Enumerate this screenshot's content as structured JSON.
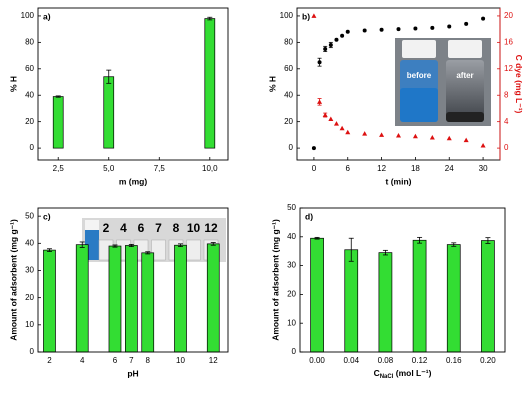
{
  "chart_data": [
    {
      "type": "bar",
      "panel_label": "a)",
      "x_label": "m (mg)",
      "y_label": "% H",
      "x": [
        2.5,
        5,
        10
      ],
      "values": [
        39,
        54,
        98
      ],
      "errors": [
        0.5,
        5,
        1
      ],
      "color": "#33dd33",
      "xlim": [
        1.5,
        10.9
      ],
      "xticks": [
        {
          "value": 2.5,
          "label": "2,5"
        },
        {
          "value": 5,
          "label": "5,0"
        },
        {
          "value": 7.5,
          "label": "7,5"
        },
        {
          "value": 10,
          "label": "10,0"
        }
      ],
      "ylim": [
        -9,
        106
      ],
      "yticks": [
        0,
        20,
        40,
        60,
        80,
        100
      ]
    },
    {
      "type": "scatter",
      "panel_label": "b)",
      "x_label": "t (min)",
      "y_label": "% H",
      "y2_label": "C dye (mg L⁻¹)",
      "x": [
        0,
        1,
        2,
        3,
        4,
        5,
        6,
        9,
        12,
        15,
        18,
        21,
        24,
        27,
        30
      ],
      "series": [
        {
          "color": "#000000",
          "values": [
            0,
            65,
            75,
            78,
            82,
            85,
            88,
            89,
            89.5,
            90,
            90.5,
            91,
            92,
            94,
            98
          ],
          "errors": [
            null,
            3,
            2,
            2,
            null,
            null,
            null,
            null,
            null,
            null,
            null,
            null,
            null,
            null,
            null
          ]
        },
        {
          "color": "#dd1111",
          "axis": "y2",
          "values": [
            20,
            7,
            5,
            4.4,
            3.7,
            3.0,
            2.4,
            2.2,
            2.0,
            1.9,
            1.8,
            1.6,
            1.5,
            1.2,
            0.4
          ],
          "errors": [
            null,
            0.5,
            0.3,
            null,
            null,
            null,
            null,
            null,
            null,
            null,
            null,
            null,
            null,
            null,
            null
          ]
        }
      ],
      "xlim": [
        -3,
        33
      ],
      "xticks": [
        0,
        6,
        12,
        18,
        24,
        30
      ],
      "ylim": [
        -9,
        106
      ],
      "yticks": [
        0,
        20,
        40,
        60,
        80,
        100
      ],
      "y2lim": [
        -1.8,
        21.2
      ],
      "y2ticks": [
        0,
        4,
        8,
        12,
        16,
        20
      ],
      "inset_labels": [
        "before",
        "after"
      ]
    },
    {
      "type": "bar",
      "panel_label": "c)",
      "x_label": "pH",
      "y_label": "Amount of adsorbent (mg g⁻¹)",
      "x": [
        2,
        4,
        6,
        7,
        8,
        10,
        12
      ],
      "values": [
        37.5,
        39.5,
        39,
        39.2,
        36.5,
        39.3,
        39.8
      ],
      "errors": [
        0.5,
        1,
        0.4,
        0.4,
        0.4,
        0.5,
        0.5
      ],
      "color": "#33dd33",
      "xlim": [
        1.3,
        12.9
      ],
      "xticks": [
        2,
        4,
        6,
        7,
        8,
        10,
        12
      ],
      "ylim": [
        0,
        53
      ],
      "yticks": [
        0,
        10,
        20,
        30,
        40,
        50
      ],
      "inset_labels": [
        "2",
        "4",
        "6",
        "7",
        "8",
        "10",
        "12"
      ]
    },
    {
      "type": "bar",
      "panel_label": "d)",
      "x_label_parts": [
        "C",
        "NaCl",
        " (mol L⁻¹)"
      ],
      "y_label": "Amount of adsorbent (mg g⁻¹)",
      "categories": [
        "0.00",
        "0.04",
        "0.08",
        "0.12",
        "0.16",
        "0.20"
      ],
      "values": [
        39.5,
        35.5,
        34.5,
        38.8,
        37.3,
        38.7
      ],
      "errors": [
        0.3,
        4,
        0.8,
        1,
        0.6,
        1
      ],
      "color": "#33dd33",
      "ylim": [
        0,
        50
      ],
      "yticks": [
        0,
        10,
        20,
        30,
        40,
        50
      ]
    }
  ]
}
